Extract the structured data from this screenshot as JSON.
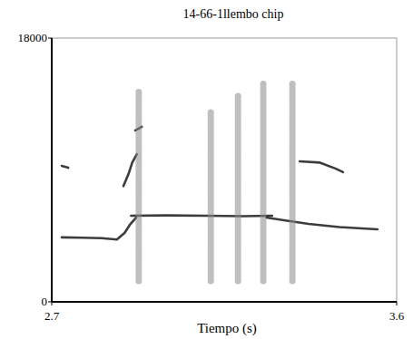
{
  "chart_data": {
    "type": "spectrogram",
    "title": "14-66-1llembo chip",
    "x_label": "Tiempo (s)",
    "xlim": [
      2.7,
      3.6
    ],
    "xticks": [
      2.7,
      3.6
    ],
    "ylim": [
      0,
      18000
    ],
    "yticks": [
      0,
      18000
    ],
    "series": [
      {
        "color": "#1a1a1a",
        "line_style": "solid",
        "x": [
          2.726,
          2.78,
          2.83,
          2.87,
          2.89,
          2.905,
          2.92
        ],
        "values": [
          4400,
          4380,
          4350,
          4250,
          4700,
          5300,
          5750
        ]
      },
      {
        "color": "#1a1a1a",
        "line_style": "solid",
        "x": [
          2.726,
          2.743
        ],
        "values": [
          9280,
          9150
        ]
      },
      {
        "color": "#1a1a1a",
        "line_style": "solid",
        "x": [
          2.887,
          2.9,
          2.91,
          2.922
        ],
        "values": [
          7900,
          8700,
          9500,
          10080
        ]
      },
      {
        "color": "#1a1a1a",
        "line_style": "solid",
        "x": [
          2.918,
          2.935
        ],
        "values": [
          11700,
          11940
        ]
      },
      {
        "color": "#1a1a1a",
        "line_style": "solid",
        "x": [
          2.907,
          3.0,
          3.1,
          3.2,
          3.275
        ],
        "values": [
          5880,
          5900,
          5880,
          5850,
          5880
        ]
      },
      {
        "color": "#1a1a1a",
        "line_style": "solid",
        "x": [
          3.26,
          3.31,
          3.37,
          3.45,
          3.55
        ],
        "values": [
          5750,
          5550,
          5320,
          5100,
          4950
        ]
      },
      {
        "color": "#1a1a1a",
        "line_style": "solid",
        "x": [
          3.347,
          3.4,
          3.44,
          3.46
        ],
        "values": [
          9590,
          9500,
          9100,
          8850
        ]
      },
      {
        "color": "#8a8a8a",
        "line_style": "dotted",
        "x": [
          2.927,
          2.927
        ],
        "values": [
          1420,
          14400
        ]
      },
      {
        "color": "#8a8a8a",
        "line_style": "dotted",
        "x": [
          3.115,
          3.115
        ],
        "values": [
          1420,
          13000
        ]
      },
      {
        "color": "#8a8a8a",
        "line_style": "dotted",
        "x": [
          3.186,
          3.186
        ],
        "values": [
          1420,
          14200
        ]
      },
      {
        "color": "#8a8a8a",
        "line_style": "dotted",
        "x": [
          3.252,
          3.252
        ],
        "values": [
          1420,
          15030
        ]
      },
      {
        "color": "#8a8a8a",
        "line_style": "dotted",
        "x": [
          3.328,
          3.328
        ],
        "values": [
          1420,
          15030
        ]
      }
    ]
  }
}
